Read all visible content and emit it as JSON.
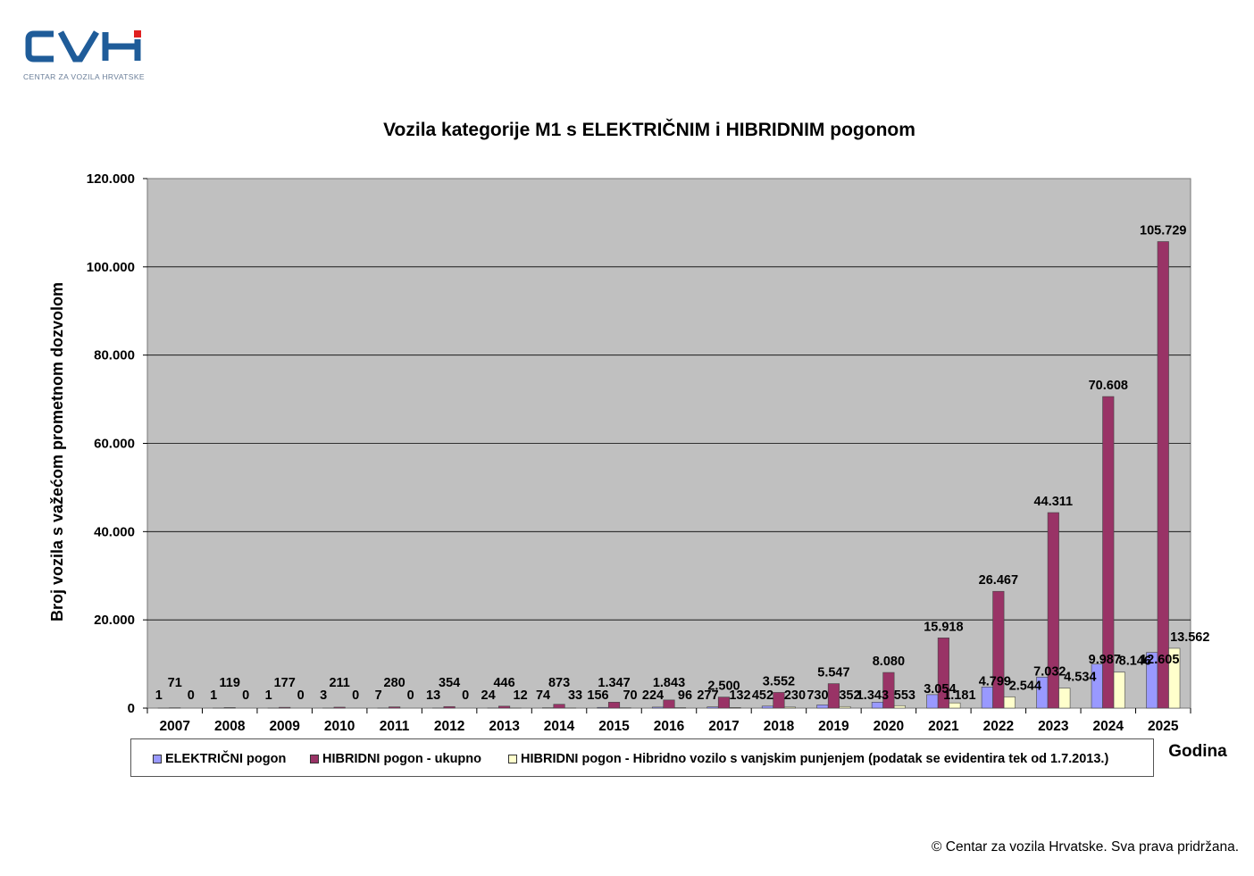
{
  "logo": {
    "text": "CENTAR ZA VOZILA HRVATSKE"
  },
  "chart_data": {
    "type": "bar",
    "title": "Vozila kategorije M1 s ELEKTRIČNIM i HIBRIDNIM pogonom",
    "ylabel": "Broj vozila s važećom prometnom dozvolom",
    "xlabel": "Godina",
    "ylim": [
      0,
      120000
    ],
    "yticks": [
      0,
      20000,
      40000,
      60000,
      80000,
      100000,
      120000
    ],
    "ytick_labels": [
      "0",
      "20.000",
      "40.000",
      "60.000",
      "80.000",
      "100.000",
      "120.000"
    ],
    "grid": true,
    "legend_position": "bottom",
    "categories": [
      "2007",
      "2008",
      "2009",
      "2010",
      "2011",
      "2012",
      "2013",
      "2014",
      "2015",
      "2016",
      "2017",
      "2018",
      "2019",
      "2020",
      "2021",
      "2022",
      "2023",
      "2024",
      "2025"
    ],
    "series": [
      {
        "name": "ELEKTRIČNI pogon",
        "color": "#9999ff",
        "values": [
          1,
          1,
          1,
          3,
          7,
          13,
          24,
          74,
          156,
          224,
          277,
          452,
          730,
          1343,
          3054,
          4799,
          7032,
          9987,
          12605
        ],
        "labels": [
          "1",
          "1",
          "1",
          "3",
          "7",
          "13",
          "24",
          "74",
          "156",
          "224",
          "277",
          "452",
          "730",
          "1.343",
          "3.054",
          "4.799",
          "7.032",
          "9.987",
          "12.605"
        ]
      },
      {
        "name": "HIBRIDNI pogon - ukupno",
        "color": "#993366",
        "values": [
          71,
          119,
          177,
          211,
          280,
          354,
          446,
          873,
          1347,
          1843,
          2500,
          3552,
          5547,
          8080,
          15918,
          26467,
          44311,
          70608,
          105729
        ],
        "labels": [
          "71",
          "119",
          "177",
          "211",
          "280",
          "354",
          "446",
          "873",
          "1.347",
          "1.843",
          "2.500",
          "3.552",
          "5.547",
          "8.080",
          "15.918",
          "26.467",
          "44.311",
          "70.608",
          "105.729"
        ]
      },
      {
        "name": "HIBRIDNI pogon - Hibridno vozilo s vanjskim punjenjem (podatak se evidentira tek od 1.7.2013.)",
        "color": "#ffffcc",
        "values": [
          0,
          0,
          0,
          0,
          0,
          0,
          12,
          33,
          70,
          96,
          132,
          230,
          352,
          553,
          1181,
          2544,
          4534,
          8146,
          13562
        ],
        "labels": [
          "0",
          "0",
          "0",
          "0",
          "0",
          "0",
          "12",
          "33",
          "70",
          "96",
          "132",
          "230",
          "352",
          "553",
          "1.181",
          "2.544",
          "4.534",
          "8.146",
          "13.562"
        ]
      }
    ]
  },
  "colors": {
    "plot_bg": "#c0c0c0",
    "grid": "#000000"
  },
  "footer": {
    "copyright": "© Centar za vozila Hrvatske. Sva prava pridržana."
  }
}
